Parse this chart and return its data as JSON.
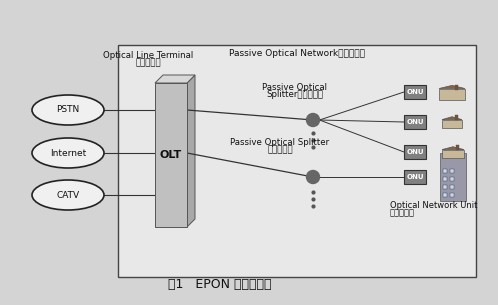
{
  "title": "图1   EPON 的系统构成",
  "bg_color": "#d4d4d4",
  "box_facecolor": "#e8e8e8",
  "box_edgecolor": "#444444",
  "olt_face": "#c0c0c0",
  "olt_side": "#a8a8a8",
  "olt_top": "#d8d8d8",
  "olt_edge": "#555555",
  "ellipse_face": "#f0f0f0",
  "ellipse_edge": "#222222",
  "line_color": "#333333",
  "splitter_color": "#666666",
  "onu_face": "#808080",
  "onu_edge": "#333333",
  "text_color": "#111111",
  "pon_label": "Passive Optical Network无源光网络",
  "olt_top_label1": "Optical Line Terminal",
  "olt_top_label2": "光线路终端",
  "olt_label": "OLT",
  "splitter1_label1": "Passive Optical",
  "splitter1_label2": "Splitter无源分光器",
  "splitter2_label1": "Passive Optical Splitter",
  "splitter2_label2": "无源分光器",
  "onu_label1": "Optical Network Unit",
  "onu_label2": "光网络单元",
  "onu_tag": "ONU",
  "inputs": [
    "PSTN",
    "Internet",
    "CATV"
  ]
}
